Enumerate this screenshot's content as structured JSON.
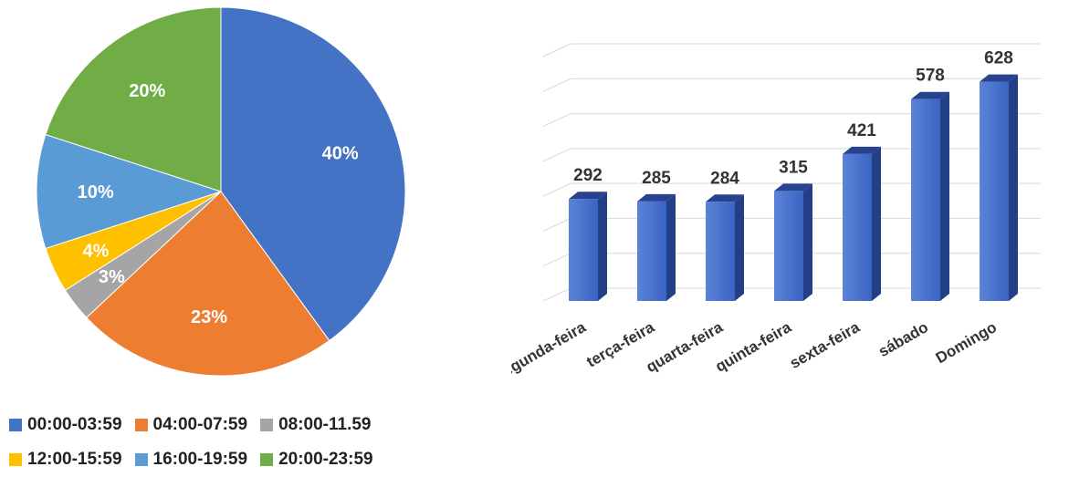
{
  "colors": {
    "slice_0": "#4472C4",
    "slice_1": "#ED7D31",
    "slice_2": "#A5A5A5",
    "slice_3": "#FFC000",
    "slice_4": "#5B9BD5",
    "slice_5": "#70AD47",
    "bar_front": "#3A64C4",
    "bar_top": "#27438F",
    "bar_side": "#233F86",
    "grid": "#d9d9d9",
    "label_text": "#333333"
  },
  "chart_data": [
    {
      "type": "pie",
      "title": "",
      "categories": [
        "00:00-03:59",
        "04:00-07:59",
        "08:00-11.59",
        "12:00-15:59",
        "16:00-19:59",
        "20:00-23:59"
      ],
      "values": [
        40,
        23,
        3,
        4,
        10,
        20
      ],
      "value_labels": [
        "40%",
        "23%",
        "3%",
        "4%",
        "10%",
        "20%"
      ],
      "legend_position": "bottom"
    },
    {
      "type": "bar",
      "title": "",
      "categories": [
        "segunda-feira",
        "terça-feira",
        "quarta-feira",
        "quinta-feira",
        "sexta-feira",
        "sábado",
        "Domingo"
      ],
      "values": [
        292,
        285,
        284,
        315,
        421,
        578,
        628
      ],
      "xlabel": "",
      "ylabel": "",
      "ylim": [
        0,
        700
      ],
      "grid": true,
      "style": "3d-column"
    }
  ]
}
